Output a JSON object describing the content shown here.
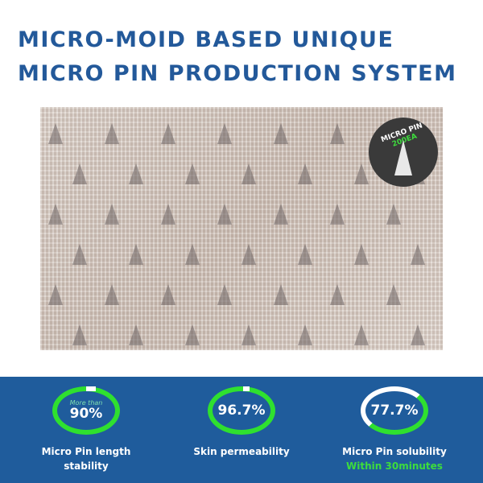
{
  "title": {
    "line1": "MICRO-MOID BASED UNIQUE",
    "line2": "MICRO PIN PRODUCTION SYSTEM"
  },
  "badge": {
    "text": "MICRO PIN",
    "count": "200EA"
  },
  "stats": [
    {
      "prefix": "More than",
      "value": "90%",
      "progress": 0.9,
      "label": "Micro Pin length",
      "label2": "stability"
    },
    {
      "value": "96.7%",
      "progress": 0.967,
      "label": "Skin permeability"
    },
    {
      "value": "77.7%",
      "progress": 0.777,
      "label": "Micro Pin solubility",
      "note": "Within 30minutes"
    }
  ],
  "colors": {
    "title": "#23599a",
    "band": "#1f5c9c",
    "ring": "#2fe02f",
    "accent": "#3ddc3d"
  }
}
